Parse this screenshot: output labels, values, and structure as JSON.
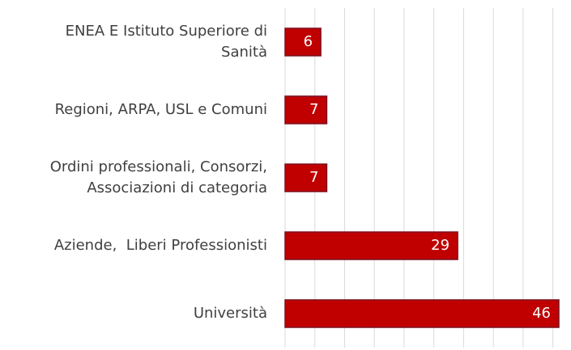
{
  "chart_data": {
    "type": "bar",
    "orientation": "horizontal",
    "categories": [
      "ENEA E Istituto Superiore di\nSanità",
      "Regioni, ARPA, USL e Comuni",
      "Ordini professionali, Consorzi,\nAssociazioni di categoria",
      "Aziende,  Liberi Professionisti",
      "Università"
    ],
    "values": [
      6,
      7,
      7,
      29,
      46
    ],
    "color": "#c00000",
    "xlim": [
      0,
      46
    ],
    "xticks": [
      0,
      5,
      10,
      15,
      20,
      25,
      30,
      35,
      40,
      45
    ],
    "grid": true
  }
}
